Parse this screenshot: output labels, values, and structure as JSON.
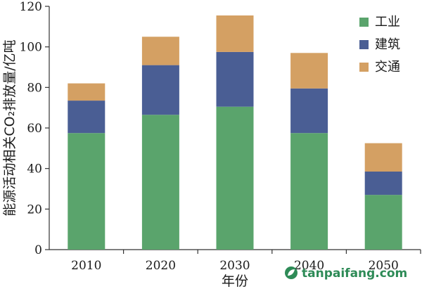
{
  "chart_data": {
    "type": "bar",
    "stacked": true,
    "categories": [
      "2010",
      "2020",
      "2030",
      "2040",
      "2050"
    ],
    "series": [
      {
        "name": "工业",
        "color": "#5aa46c",
        "values": [
          57.5,
          66.5,
          70.5,
          57.5,
          27
        ]
      },
      {
        "name": "建筑",
        "color": "#4a5e94",
        "values": [
          16,
          24.5,
          27,
          22,
          11.5
        ]
      },
      {
        "name": "交通",
        "color": "#d4a063",
        "values": [
          8.5,
          14,
          18,
          17.5,
          14
        ]
      }
    ],
    "title": "",
    "xlabel": "年份",
    "ylabel": "能源活动相关CO₂排放量/亿吨",
    "ylim": [
      0,
      120
    ],
    "yticks": [
      0,
      20,
      40,
      60,
      80,
      100,
      120
    ],
    "grid": false,
    "legend": "top-right"
  },
  "watermark": {
    "text": "tanpaifang.com",
    "icon": "leaf-logo-icon"
  }
}
